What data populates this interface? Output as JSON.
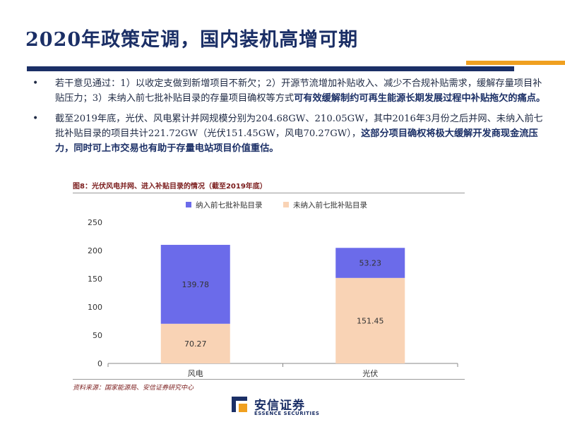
{
  "slide": {
    "title": "2020年政策定调，国内装机高增可期"
  },
  "bullets": [
    {
      "marker": "•",
      "text": "若干意见通过：1）以收定支做到新增项目不新欠；2）开源节流增加补贴收入、减少不合规补贴需求，缓解存量项目补贴压力；3）未纳入前七批补贴目录的存量项目确权等方式",
      "bold": "可有效缓解制约可再生能源长期发展过程中补贴拖欠的痛点。"
    },
    {
      "marker": "•",
      "text": "截至2019年底，光伏、风电累计并网规模分别为204.68GW、210.05GW，其中2016年3月份之后并网、未纳入前七批补贴目录的项目共计221.72GW（光伏151.45GW，风电70.27GW），",
      "bold": "这部分项目确权将极大缓解开发商现金流压力，同时可上市交易也有助于存量电站项目价值重估。"
    }
  ],
  "figure": {
    "caption": "图8：光伏风电并网、进入补贴目录的情况（截至2019年底）",
    "source": "资料来源：国家能源局、安信证券研究中心"
  },
  "chart_data": {
    "type": "bar",
    "stacked": true,
    "categories": [
      "风电",
      "光伏"
    ],
    "series": [
      {
        "name": "纳入前七批补贴目录",
        "values": [
          139.78,
          53.23
        ],
        "color": "#6b6bea"
      },
      {
        "name": "未纳入前七批补贴目录",
        "values": [
          70.27,
          151.45
        ],
        "color": "#f9d3b5"
      }
    ],
    "ylim": [
      0,
      250
    ],
    "yticks": [
      0,
      50,
      100,
      150,
      200,
      250
    ],
    "data_labels": [
      [
        "139.78",
        "53.23"
      ],
      [
        "70.27",
        "151.45"
      ]
    ],
    "legend_position": "top",
    "grid": false
  },
  "logo": {
    "name_cn": "安信证券",
    "name_en": "ESSENCE SECURITIES",
    "colors": {
      "navy": "#1b2f66",
      "orange": "#f0a020"
    }
  }
}
